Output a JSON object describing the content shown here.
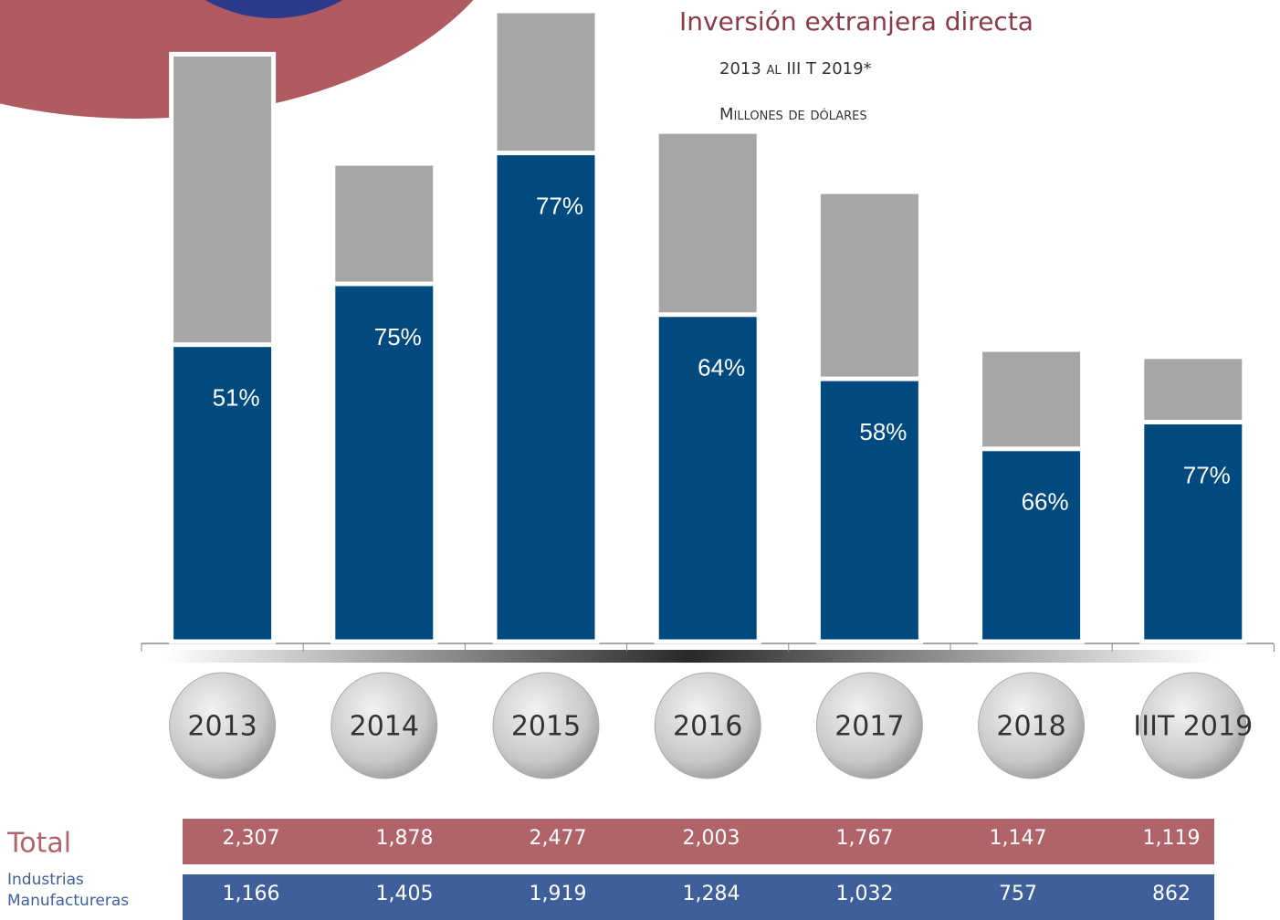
{
  "chart_data": {
    "type": "bar",
    "title": "Inversión extranjera directa",
    "subtitle": "2013 al III T 2019*",
    "unit_label": "Millones de dólares",
    "categories": [
      "2013",
      "2014",
      "2015",
      "2016",
      "2017",
      "2018",
      "IIIT 2019"
    ],
    "series": [
      {
        "name": "Total",
        "color": "#a6a6a6",
        "label_color": "#b0646a",
        "values": [
          2307,
          1878,
          2477,
          2003,
          1767,
          1147,
          1119
        ],
        "value_labels": [
          "2,307",
          "1,878",
          "2,477",
          "2,003",
          "1,767",
          "1,147",
          "1,119"
        ]
      },
      {
        "name": "Industrias Manufactureras",
        "color": "#004a80",
        "label_color": "#3e5f9a",
        "values": [
          1166,
          1405,
          1919,
          1284,
          1032,
          757,
          862
        ],
        "value_labels": [
          "1,166",
          "1,405",
          "1,919",
          "1,284",
          "1,032",
          "757",
          "862"
        ],
        "share_labels": [
          "51%",
          "75%",
          "77%",
          "64%",
          "58%",
          "66%",
          "77%"
        ]
      }
    ],
    "ylim": [
      0,
      2500
    ]
  }
}
